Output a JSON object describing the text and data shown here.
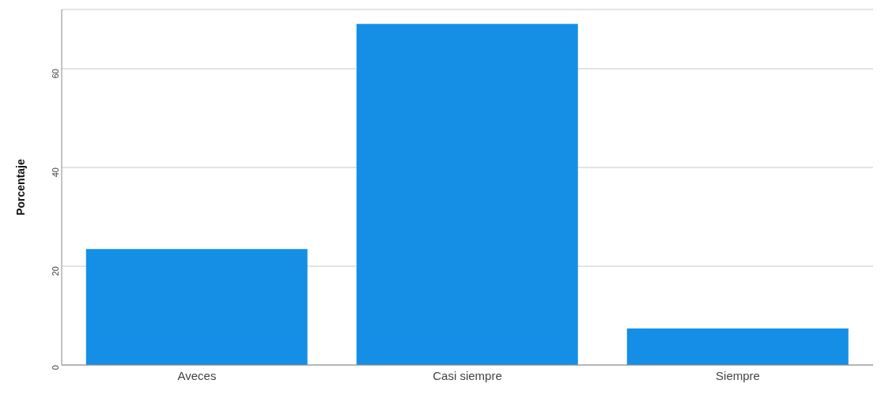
{
  "chart_data": {
    "type": "bar",
    "ylabel": "Porcentaje",
    "categories": [
      "Aveces",
      "Casi siempre",
      "Siempre"
    ],
    "values": [
      23.5,
      69.1,
      7.4
    ],
    "color": "#158fe6",
    "ylim": [
      0,
      72
    ],
    "yticks": [
      0,
      20,
      40,
      60
    ],
    "grid": "y"
  }
}
